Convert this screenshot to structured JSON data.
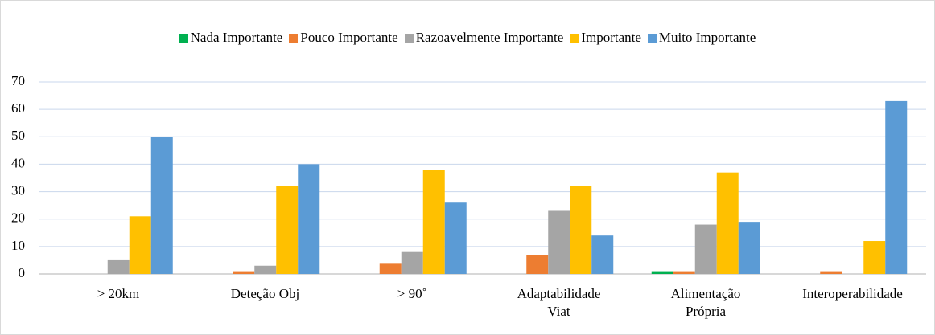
{
  "chart_data": {
    "type": "bar",
    "categories": [
      "> 20km",
      "Deteção Obj",
      "> 90˚",
      "Adaptabilidade Viat",
      "Alimentação Própria",
      "Interoperabilidade"
    ],
    "series": [
      {
        "name": "Nada Importante",
        "color": "#00b050",
        "values": [
          0,
          0,
          0,
          0,
          1,
          0
        ]
      },
      {
        "name": "Pouco Importante",
        "color": "#ed7d31",
        "values": [
          0,
          1,
          4,
          7,
          1,
          1
        ]
      },
      {
        "name": "Razoavelmente Importante",
        "color": "#a5a5a5",
        "values": [
          5,
          3,
          8,
          23,
          18,
          0
        ]
      },
      {
        "name": "Importante",
        "color": "#ffc000",
        "values": [
          21,
          32,
          38,
          32,
          37,
          12
        ]
      },
      {
        "name": "Muito Importante",
        "color": "#5b9bd5",
        "values": [
          50,
          40,
          26,
          14,
          19,
          63
        ]
      }
    ],
    "ylim": [
      0,
      70
    ],
    "yticks": [
      0,
      10,
      20,
      30,
      40,
      50,
      60,
      70
    ],
    "grid": true,
    "legend": "top"
  }
}
